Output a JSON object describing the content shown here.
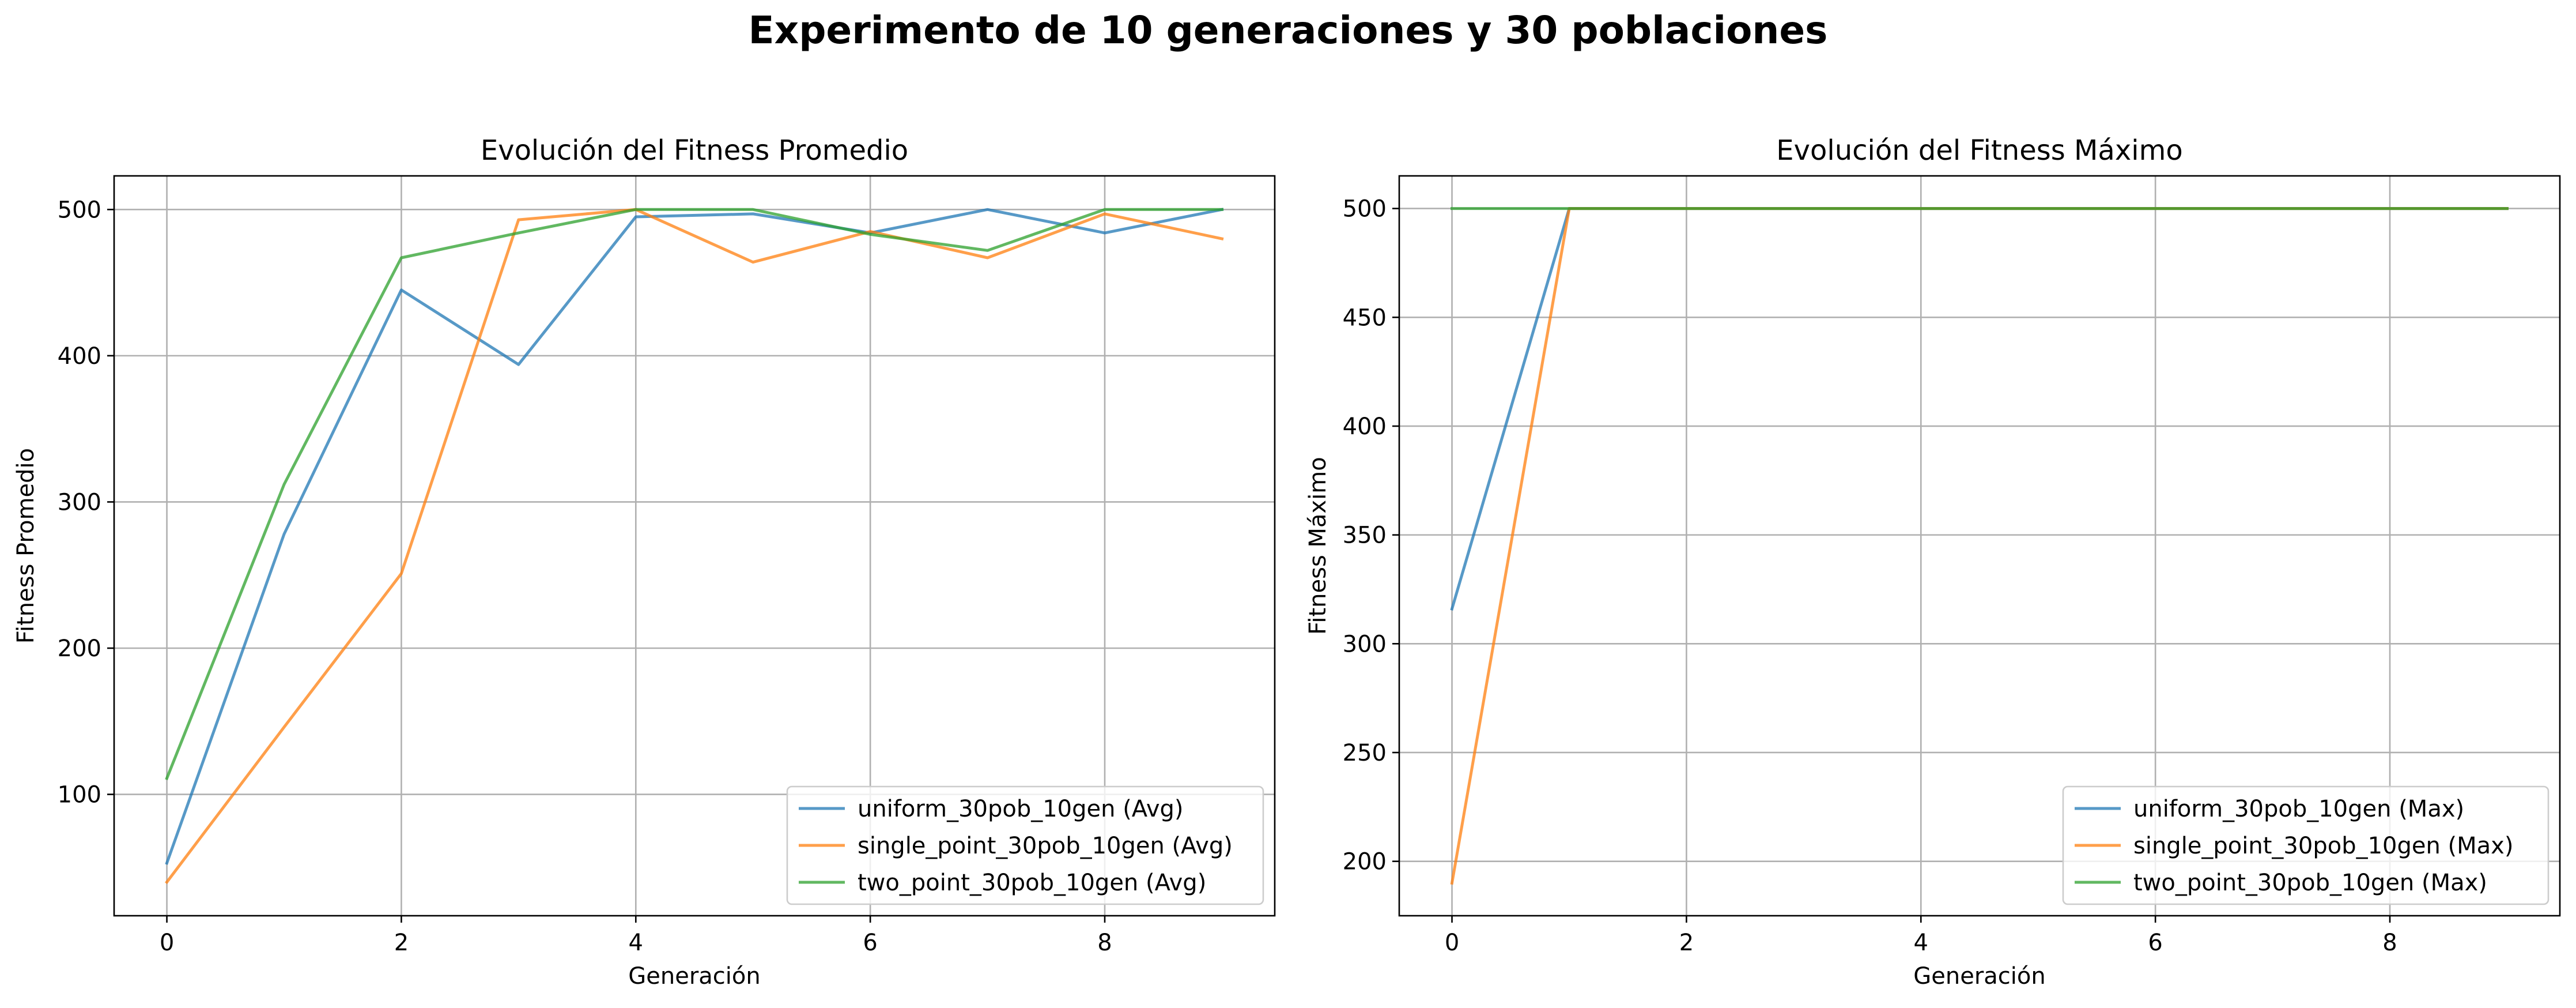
{
  "figure": {
    "suptitle": "Experimento de 10 generaciones y 30 poblaciones"
  },
  "colors": {
    "uniform": "#1f77b4",
    "single_point": "#ff7f0e",
    "two_point": "#2ca02c",
    "grid": "#b0b0b0",
    "axes": "#000000"
  },
  "chart_data": [
    {
      "type": "line",
      "title": "Evolución del Fitness Promedio",
      "xlabel": "Generación",
      "ylabel": "Fitness Promedio",
      "xlim": [
        -0.45,
        9.45
      ],
      "ylim": [
        17,
        523
      ],
      "xticks": [
        0,
        2,
        4,
        6,
        8
      ],
      "yticks": [
        100,
        200,
        300,
        400,
        500
      ],
      "grid": true,
      "legend_position": "lower-right",
      "x": [
        0,
        1,
        2,
        3,
        4,
        5,
        6,
        7,
        8,
        9
      ],
      "series": [
        {
          "name": "uniform_30pob_10gen (Avg)",
          "color_key": "uniform",
          "values": [
            53,
            278,
            445,
            394,
            495,
            497,
            484,
            500,
            484,
            500
          ]
        },
        {
          "name": "single_point_30pob_10gen (Avg)",
          "color_key": "single_point",
          "values": [
            40,
            146,
            251,
            493,
            500,
            464,
            485,
            467,
            497,
            480
          ]
        },
        {
          "name": "two_point_30pob_10gen (Avg)",
          "color_key": "two_point",
          "values": [
            111,
            312,
            467,
            484,
            500,
            500,
            483,
            472,
            500,
            500
          ]
        }
      ]
    },
    {
      "type": "line",
      "title": "Evolución del Fitness Máximo",
      "xlabel": "Generación",
      "ylabel": "Fitness Máximo",
      "xlim": [
        -0.45,
        9.45
      ],
      "ylim": [
        175,
        515
      ],
      "xticks": [
        0,
        2,
        4,
        6,
        8
      ],
      "yticks": [
        200,
        250,
        300,
        350,
        400,
        450,
        500
      ],
      "grid": true,
      "legend_position": "lower-right",
      "x": [
        0,
        1,
        2,
        3,
        4,
        5,
        6,
        7,
        8,
        9
      ],
      "series": [
        {
          "name": "uniform_30pob_10gen (Max)",
          "color_key": "uniform",
          "values": [
            316,
            500,
            500,
            500,
            500,
            500,
            500,
            500,
            500,
            500
          ]
        },
        {
          "name": "single_point_30pob_10gen (Max)",
          "color_key": "single_point",
          "values": [
            190,
            500,
            500,
            500,
            500,
            500,
            500,
            500,
            500,
            500
          ]
        },
        {
          "name": "two_point_30pob_10gen (Max)",
          "color_key": "two_point",
          "values": [
            500,
            500,
            500,
            500,
            500,
            500,
            500,
            500,
            500,
            500
          ]
        }
      ]
    }
  ]
}
